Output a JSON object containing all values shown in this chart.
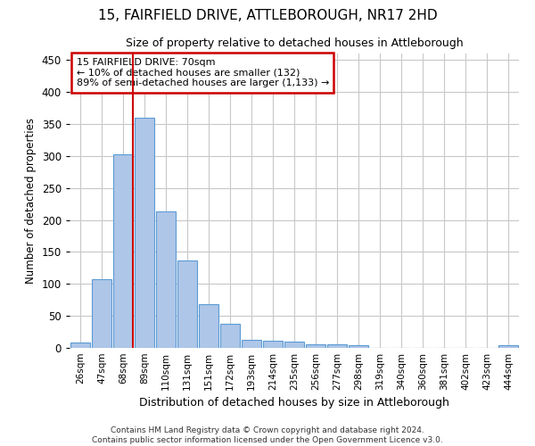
{
  "title_line1": "15, FAIRFIELD DRIVE, ATTLEBOROUGH, NR17 2HD",
  "title_line2": "Size of property relative to detached houses in Attleborough",
  "xlabel": "Distribution of detached houses by size in Attleborough",
  "ylabel": "Number of detached properties",
  "footnote": "Contains HM Land Registry data © Crown copyright and database right 2024.\nContains public sector information licensed under the Open Government Licence v3.0.",
  "annotation_title": "15 FAIRFIELD DRIVE: 70sqm",
  "annotation_line2": "← 10% of detached houses are smaller (132)",
  "annotation_line3": "89% of semi-detached houses are larger (1,133) →",
  "bar_labels": [
    "26sqm",
    "47sqm",
    "68sqm",
    "89sqm",
    "110sqm",
    "131sqm",
    "151sqm",
    "172sqm",
    "193sqm",
    "214sqm",
    "235sqm",
    "256sqm",
    "277sqm",
    "298sqm",
    "319sqm",
    "340sqm",
    "360sqm",
    "381sqm",
    "402sqm",
    "423sqm",
    "444sqm"
  ],
  "bar_values": [
    9,
    108,
    303,
    360,
    213,
    137,
    69,
    38,
    13,
    11,
    10,
    6,
    5,
    4,
    0,
    0,
    0,
    0,
    0,
    0,
    4
  ],
  "bar_color": "#aec6e8",
  "bar_edge_color": "#5b9bd5",
  "vline_color": "#cc0000",
  "annotation_box_color": "#cc0000",
  "background_color": "#ffffff",
  "grid_color": "#c8c8c8",
  "ylim": [
    0,
    460
  ],
  "yticks": [
    0,
    50,
    100,
    150,
    200,
    250,
    300,
    350,
    400,
    450
  ]
}
